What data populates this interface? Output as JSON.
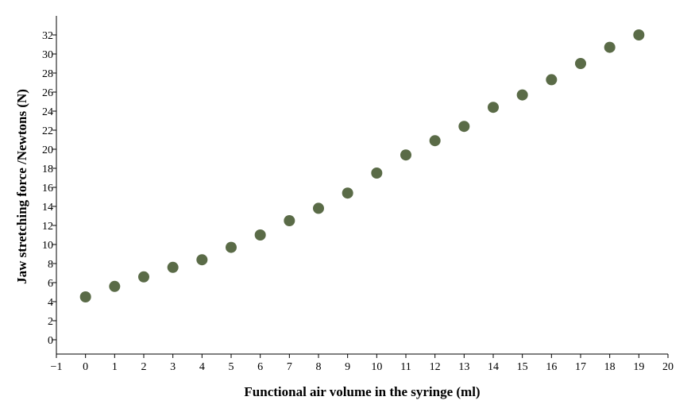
{
  "chart_data": {
    "type": "scatter",
    "title": "",
    "xlabel": "Functional air volume in the syringe  (ml)",
    "ylabel": "Jaw stretching force /Newtons (N)",
    "xlim": [
      -1,
      20
    ],
    "ylim": [
      -1.5,
      34
    ],
    "x_ticks": [
      -1,
      0,
      1,
      2,
      3,
      4,
      5,
      6,
      7,
      8,
      9,
      10,
      11,
      12,
      13,
      14,
      15,
      16,
      17,
      18,
      19,
      20
    ],
    "x_tick_labels": [
      "−1",
      "0",
      "1",
      "2",
      "3",
      "4",
      "5",
      "6",
      "7",
      "8",
      "9",
      "10",
      "11",
      "12",
      "13",
      "14",
      "15",
      "16",
      "17",
      "18",
      "19",
      "20"
    ],
    "y_ticks": [
      0,
      2,
      4,
      6,
      8,
      10,
      12,
      14,
      16,
      18,
      20,
      22,
      24,
      26,
      28,
      30,
      32
    ],
    "y_tick_labels": [
      "0",
      "2",
      "4",
      "6",
      "8",
      "10",
      "12",
      "14",
      "16",
      "18",
      "20",
      "22",
      "24",
      "26",
      "28",
      "30",
      "32"
    ],
    "grid": false,
    "marker_color": "#5a6b47",
    "series": [
      {
        "x": [
          0,
          1,
          2,
          3,
          4,
          5,
          6,
          7,
          8,
          9,
          10,
          11,
          12,
          13,
          14,
          15,
          16,
          17,
          18,
          19
        ],
        "y": [
          4.5,
          5.6,
          6.6,
          7.6,
          8.4,
          9.7,
          11.0,
          12.5,
          13.8,
          15.4,
          17.5,
          19.4,
          20.9,
          22.4,
          24.4,
          25.7,
          27.3,
          29.0,
          30.7,
          32.0
        ]
      }
    ]
  }
}
